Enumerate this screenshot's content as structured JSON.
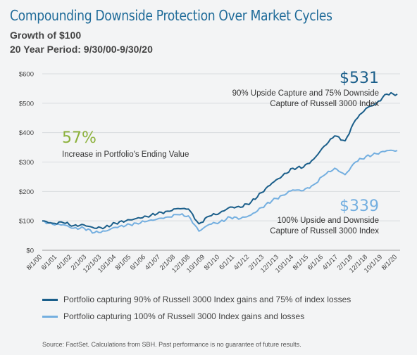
{
  "header": {
    "title": "Compounding Downside Protection Over Market Cycles",
    "subtitle1": "Growth of $100",
    "subtitle2": "20 Year Period: 9/30/00-9/30/20"
  },
  "colors": {
    "dark_series": "#1a5e8a",
    "light_series": "#74afe0",
    "accent_green": "#8cb13b",
    "title": "#1f6b99"
  },
  "chart_data": {
    "type": "line",
    "ylim": [
      0,
      600
    ],
    "y_ticks": [
      "$0",
      "$100",
      "$200",
      "$300",
      "$400",
      "$500",
      "$600"
    ],
    "x_ticks": [
      "8/1/00",
      "6/1/01",
      "4/1/02",
      "2/1/03",
      "12/1/03",
      "10/1/04",
      "8/1/05",
      "6/1/06",
      "4/1/07",
      "2/1/08",
      "12/1/08",
      "10/1/09",
      "8/1/10",
      "6/1/11",
      "4/1/12",
      "2/1/13",
      "12/1/13",
      "10/1/14",
      "8/1/15",
      "6/1/16",
      "4/1/17",
      "2/1/18",
      "12/1/18",
      "10/1/19",
      "8/1/20"
    ],
    "series": [
      {
        "name": "Portfolio capturing 90% of Russell 3000 Index gains and 75% of index losses",
        "values": [
          100,
          92,
          94,
          84,
          86,
          75,
          78,
          92,
          100,
          108,
          115,
          124,
          133,
          142,
          140,
          90,
          116,
          127,
          147,
          146,
          164,
          196,
          228,
          253,
          279,
          282,
          310,
          354,
          389,
          372,
          443,
          482,
          500,
          531,
          531
        ]
      },
      {
        "name": "Portfolio capturing 100% of Russell 3000 Index gains and losses",
        "values": [
          100,
          88,
          87,
          75,
          75,
          60,
          65,
          78,
          84,
          92,
          98,
          106,
          113,
          121,
          117,
          65,
          88,
          96,
          112,
          108,
          120,
          145,
          168,
          187,
          205,
          203,
          223,
          255,
          279,
          257,
          300,
          319,
          328,
          339,
          339
        ]
      }
    ],
    "annotations": {
      "dark_value": "$531",
      "dark_label_1": "90% Upside Capture and 75% Downside",
      "dark_label_2": "Capture of Russell 3000 Index",
      "light_value": "$339",
      "light_label_1": "100% Upside and Downside",
      "light_label_2": "Capture of Russell 3000 Index",
      "increase_value": "57%",
      "increase_label": "Increase in Portfolio's Ending Value"
    }
  },
  "legend": {
    "dark": "Portfolio capturing 90% of Russell 3000 Index gains and 75% of index losses",
    "light": "Portfolio capturing 100% of Russell 3000 Index gains and losses"
  },
  "footer": {
    "source": "Source: FactSet. Calculations from SBH. Past performance is no guarantee of future results."
  }
}
